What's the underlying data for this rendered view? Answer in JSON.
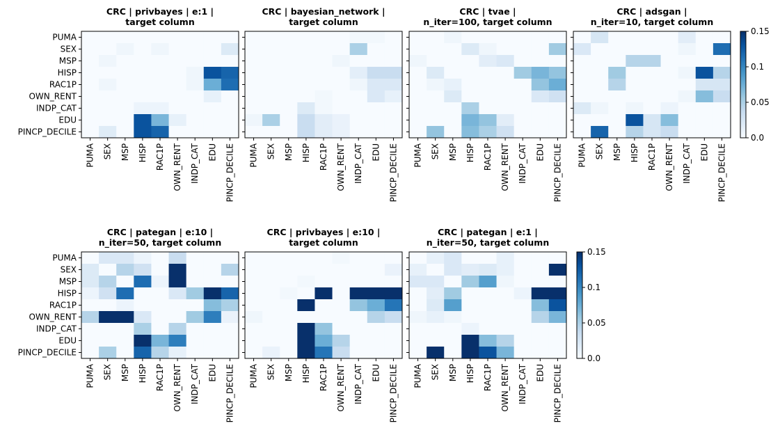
{
  "chart_data": {
    "type": "heatmap",
    "labels": [
      "PUMA",
      "SEX",
      "MSP",
      "HISP",
      "RAC1P",
      "OWN_RENT",
      "INDP_CAT",
      "EDU",
      "PINCP_DECILE"
    ],
    "colorscale": {
      "name": "Blues",
      "min": 0.0,
      "max": 0.15,
      "low_color": "#f7fbff",
      "high_color": "#08306b"
    },
    "colorbar_ticks": [
      "0.0",
      "0.05",
      "0.1",
      "0.15"
    ],
    "panels": [
      {
        "title_lines": [
          "CRC | privbayes | e:1 |",
          "target column"
        ],
        "values": [
          [
            0,
            0,
            0,
            0,
            0,
            0,
            0,
            0,
            0
          ],
          [
            0,
            0,
            0.006,
            0,
            0.006,
            0,
            0,
            0,
            0.02
          ],
          [
            0,
            0.006,
            0,
            0,
            0,
            0,
            0,
            0,
            0
          ],
          [
            0,
            0,
            0,
            0,
            0,
            0,
            0.006,
            0.13,
            0.12
          ],
          [
            0,
            0.006,
            0,
            0,
            0,
            0,
            0.006,
            0.075,
            0.115
          ],
          [
            0,
            0,
            0,
            0,
            0,
            0,
            0,
            0.012,
            0
          ],
          [
            0,
            0,
            0,
            0.008,
            0.008,
            0,
            0,
            0,
            0
          ],
          [
            0,
            0,
            0,
            0.13,
            0.07,
            0.012,
            0,
            0,
            0
          ],
          [
            0,
            0.018,
            0,
            0.13,
            0.12,
            0,
            0,
            0,
            0
          ]
        ]
      },
      {
        "title_lines": [
          "CRC | bayesian_network |",
          "target column"
        ],
        "values": [
          [
            0,
            0,
            0,
            0,
            0,
            0,
            0.004,
            0.004,
            0
          ],
          [
            0,
            0,
            0,
            0,
            0,
            0,
            0.05,
            0,
            0
          ],
          [
            0,
            0,
            0,
            0,
            0,
            0.006,
            0,
            0,
            0
          ],
          [
            0,
            0,
            0,
            0,
            0,
            0,
            0.015,
            0.035,
            0.035
          ],
          [
            0,
            0,
            0,
            0,
            0,
            0,
            0.006,
            0.022,
            0.022
          ],
          [
            0,
            0,
            0,
            0,
            0.004,
            0,
            0,
            0.022,
            0.012
          ],
          [
            0,
            0,
            0,
            0.02,
            0.004,
            0,
            0,
            0,
            0
          ],
          [
            0.006,
            0.05,
            0,
            0.035,
            0.016,
            0.01,
            0,
            0,
            0
          ],
          [
            0,
            0,
            0,
            0.035,
            0.016,
            0.01,
            0,
            0,
            0
          ]
        ]
      },
      {
        "title_lines": [
          "CRC | tvae |",
          "n_iter=100, target column"
        ],
        "values": [
          [
            0,
            0,
            0.006,
            0,
            0,
            0,
            0,
            0,
            0
          ],
          [
            0,
            0,
            0,
            0.02,
            0.006,
            0,
            0,
            0,
            0.055
          ],
          [
            0.006,
            0,
            0,
            0,
            0.016,
            0.022,
            0,
            0,
            0
          ],
          [
            0,
            0.02,
            0,
            0,
            0,
            0,
            0.055,
            0.07,
            0.06
          ],
          [
            0,
            0.006,
            0.012,
            0,
            0,
            0,
            0,
            0.06,
            0.075
          ],
          [
            0,
            0,
            0.02,
            0,
            0,
            0,
            0,
            0.022,
            0.03
          ],
          [
            0,
            0,
            0,
            0.05,
            0,
            0,
            0,
            0,
            0
          ],
          [
            0,
            0,
            0,
            0.07,
            0.06,
            0.016,
            0,
            0,
            0
          ],
          [
            0,
            0.06,
            0,
            0.065,
            0.05,
            0.03,
            0,
            0,
            0
          ]
        ]
      },
      {
        "title_lines": [
          "CRC | adsgan |",
          "n_iter=10, target column"
        ],
        "values": [
          [
            0,
            0.025,
            0,
            0,
            0,
            0,
            0.016,
            0,
            0
          ],
          [
            0.022,
            0,
            0,
            0,
            0,
            0,
            0.006,
            0,
            0.115
          ],
          [
            0,
            0,
            0,
            0.045,
            0.045,
            0,
            0,
            0,
            0
          ],
          [
            0,
            0,
            0.055,
            0,
            0,
            0,
            0.006,
            0.13,
            0.045
          ],
          [
            0,
            0,
            0.045,
            0,
            0,
            0,
            0,
            0.025,
            0.025
          ],
          [
            0,
            0,
            0,
            0,
            0,
            0,
            0.006,
            0.065,
            0.035
          ],
          [
            0.02,
            0.006,
            0,
            0.006,
            0,
            0.008,
            0,
            0,
            0
          ],
          [
            0,
            0,
            0,
            0.13,
            0.025,
            0.065,
            0,
            0,
            0
          ],
          [
            0,
            0.12,
            0,
            0.045,
            0.025,
            0.035,
            0,
            0,
            0
          ]
        ]
      },
      {
        "title_lines": [
          "CRC | pategan | e:10 |",
          "n_iter=50, target column"
        ],
        "values": [
          [
            0,
            0.022,
            0.022,
            0.008,
            0,
            0.035,
            0,
            0,
            0
          ],
          [
            0.02,
            0,
            0.045,
            0.03,
            0,
            0.15,
            0,
            0,
            0.045
          ],
          [
            0.02,
            0.045,
            0,
            0.115,
            0.008,
            0.15,
            0,
            0,
            0
          ],
          [
            0.008,
            0.03,
            0.115,
            0,
            0,
            0.022,
            0.055,
            0.15,
            0.12
          ],
          [
            0,
            0,
            0.008,
            0,
            0,
            0,
            0,
            0.065,
            0.05
          ],
          [
            0.045,
            0.15,
            0.15,
            0.022,
            0,
            0,
            0.055,
            0.105,
            0.01
          ],
          [
            0,
            0,
            0,
            0.05,
            0,
            0.045,
            0,
            0,
            0
          ],
          [
            0,
            0,
            0,
            0.15,
            0.07,
            0.105,
            0,
            0,
            0
          ],
          [
            0,
            0.05,
            0,
            0.12,
            0.045,
            0.012,
            0,
            0,
            0
          ]
        ]
      },
      {
        "title_lines": [
          "CRC | privbayes | e:10 |",
          "target column"
        ],
        "values": [
          [
            0,
            0,
            0,
            0,
            0,
            0.004,
            0,
            0,
            0
          ],
          [
            0,
            0,
            0,
            0,
            0,
            0,
            0,
            0,
            0.01
          ],
          [
            0,
            0,
            0,
            0.004,
            0,
            0,
            0,
            0,
            0
          ],
          [
            0,
            0,
            0.004,
            0,
            0.15,
            0,
            0.15,
            0.15,
            0.15
          ],
          [
            0,
            0,
            0,
            0.15,
            0,
            0,
            0.06,
            0.075,
            0.11
          ],
          [
            0.006,
            0,
            0,
            0,
            0,
            0,
            0,
            0.045,
            0.035
          ],
          [
            0,
            0,
            0,
            0.15,
            0.06,
            0,
            0,
            0,
            0
          ],
          [
            0,
            0,
            0,
            0.15,
            0.075,
            0.045,
            0,
            0,
            0
          ],
          [
            0,
            0.01,
            0,
            0.15,
            0.11,
            0.035,
            0,
            0,
            0
          ]
        ]
      },
      {
        "title_lines": [
          "CRC | pategan | e:1 |",
          "n_iter=50, target column"
        ],
        "values": [
          [
            0,
            0.012,
            0.022,
            0,
            0,
            0.012,
            0,
            0,
            0
          ],
          [
            0.012,
            0,
            0.022,
            0.016,
            0.02,
            0.012,
            0,
            0,
            0.15
          ],
          [
            0.022,
            0.022,
            0,
            0.055,
            0.085,
            0.006,
            0,
            0,
            0
          ],
          [
            0,
            0.016,
            0.055,
            0,
            0,
            0,
            0.008,
            0.15,
            0.15
          ],
          [
            0,
            0.02,
            0.085,
            0,
            0,
            0,
            0,
            0.065,
            0.13
          ],
          [
            0.006,
            0.012,
            0.006,
            0,
            0,
            0,
            0,
            0.045,
            0.07
          ],
          [
            0,
            0,
            0,
            0.008,
            0,
            0,
            0,
            0,
            0
          ],
          [
            0,
            0,
            0,
            0.15,
            0.065,
            0.045,
            0,
            0,
            0
          ],
          [
            0,
            0.15,
            0,
            0.15,
            0.13,
            0.07,
            0,
            0,
            0
          ]
        ]
      }
    ]
  }
}
